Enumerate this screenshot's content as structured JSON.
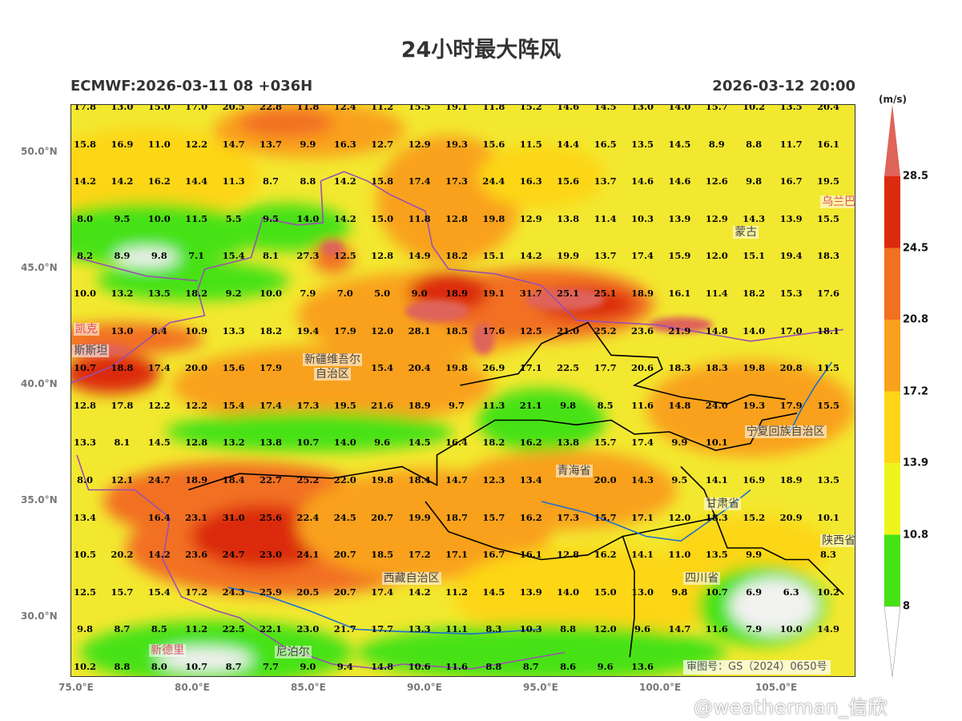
{
  "title": "24小时最大阵风",
  "subtitle_left": "ECMWF:2026-03-11 08 +036H",
  "subtitle_right": "2026-03-12 20:00",
  "colorbar": {
    "unit": "(m/s)",
    "levels": [
      "8",
      "10.8",
      "13.9",
      "17.2",
      "20.8",
      "24.5",
      "28.5"
    ],
    "colors": [
      "#ffffff",
      "#46e214",
      "#eef51c",
      "#fdd617",
      "#f9a11d",
      "#f27021",
      "#dc2a0e",
      "#df645a"
    ]
  },
  "axes": {
    "lon_ticks": [
      {
        "v": 75,
        "label": "75.0°E"
      },
      {
        "v": 80,
        "label": "80.0°E"
      },
      {
        "v": 85,
        "label": "85.0°E"
      },
      {
        "v": 90,
        "label": "90.0°E"
      },
      {
        "v": 95,
        "label": "95.0°E"
      },
      {
        "v": 100,
        "label": "100.0°E"
      },
      {
        "v": 105,
        "label": "105.0°E"
      }
    ],
    "lat_ticks": [
      {
        "v": 50,
        "label": "50.0°N"
      },
      {
        "v": 45,
        "label": "45.0°N"
      },
      {
        "v": 40,
        "label": "40.0°N"
      },
      {
        "v": 35,
        "label": "35.0°N"
      },
      {
        "v": 30,
        "label": "30.0°N"
      }
    ]
  },
  "grid_values": [
    [
      "17.8",
      "13.0",
      "15.0",
      "17.0",
      "20.5",
      "22.8",
      "11.8",
      "12.4",
      "11.2",
      "15.5",
      "19.1",
      "11.8",
      "15.2",
      "14.6",
      "14.5",
      "13.0",
      "14.0",
      "15.7",
      "10.2",
      "13.5",
      "20.4"
    ],
    [
      "15.8",
      "16.9",
      "11.0",
      "12.2",
      "14.7",
      "13.7",
      "9.9",
      "16.3",
      "12.7",
      "12.9",
      "19.3",
      "15.6",
      "11.5",
      "14.4",
      "16.5",
      "13.5",
      "14.5",
      "8.9",
      "8.8",
      "11.7",
      "16.1"
    ],
    [
      "14.2",
      "14.2",
      "16.2",
      "14.4",
      "11.3",
      "8.7",
      "8.8",
      "14.2",
      "15.8",
      "17.4",
      "17.3",
      "24.4",
      "16.3",
      "15.6",
      "13.7",
      "14.6",
      "14.6",
      "12.6",
      "9.8",
      "16.7",
      "19.5"
    ],
    [
      "8.0",
      "9.5",
      "10.0",
      "11.5",
      "5.5",
      "9.5",
      "14.0",
      "14.2",
      "15.0",
      "11.8",
      "12.8",
      "19.8",
      "12.9",
      "13.8",
      "11.4",
      "10.3",
      "13.9",
      "12.9",
      "14.3",
      "13.9",
      "15.5"
    ],
    [
      "8.2",
      "8.9",
      "9.8",
      "7.1",
      "15.4",
      "8.1",
      "27.3",
      "12.5",
      "12.8",
      "14.9",
      "18.2",
      "15.1",
      "14.2",
      "19.9",
      "13.7",
      "17.4",
      "15.9",
      "12.0",
      "15.1",
      "19.4",
      "18.3"
    ],
    [
      "10.0",
      "13.2",
      "13.5",
      "18.2",
      "9.2",
      "10.0",
      "7.9",
      "7.0",
      "5.0",
      "9.0",
      "18.9",
      "19.1",
      "31.7",
      "25.1",
      "25.1",
      "18.9",
      "16.1",
      "11.4",
      "18.2",
      "15.3",
      "17.6"
    ],
    [
      "",
      "13.0",
      "8.4",
      "10.9",
      "13.3",
      "18.2",
      "19.4",
      "17.9",
      "12.0",
      "28.1",
      "18.5",
      "17.6",
      "12.5",
      "21.0",
      "25.2",
      "23.6",
      "21.9",
      "14.8",
      "14.0",
      "17.0",
      "18.1"
    ],
    [
      "10.7",
      "18.8",
      "17.4",
      "20.0",
      "15.6",
      "17.9",
      "",
      "",
      "15.4",
      "20.4",
      "19.8",
      "26.9",
      "17.1",
      "22.5",
      "17.7",
      "20.6",
      "18.3",
      "18.3",
      "19.8",
      "20.8",
      "11.5"
    ],
    [
      "12.8",
      "17.8",
      "12.2",
      "12.2",
      "15.4",
      "17.4",
      "17.3",
      "19.5",
      "21.6",
      "18.9",
      "9.7",
      "11.3",
      "21.1",
      "9.8",
      "8.5",
      "11.6",
      "14.8",
      "24.0",
      "19.3",
      "17.9",
      "15.5"
    ],
    [
      "13.3",
      "8.1",
      "14.5",
      "12.8",
      "13.2",
      "13.8",
      "10.7",
      "14.0",
      "9.6",
      "14.5",
      "16.4",
      "18.2",
      "16.2",
      "13.8",
      "15.7",
      "17.4",
      "9.9",
      "10.1",
      "",
      "",
      ""
    ],
    [
      "8.0",
      "12.1",
      "24.7",
      "18.9",
      "18.4",
      "22.7",
      "25.2",
      "22.0",
      "19.8",
      "18.4",
      "14.7",
      "12.3",
      "13.4",
      "",
      "20.0",
      "14.3",
      "9.5",
      "14.1",
      "16.9",
      "18.9",
      "13.5"
    ],
    [
      "13.4",
      "",
      "16.4",
      "23.1",
      "31.0",
      "25.6",
      "22.4",
      "24.5",
      "20.7",
      "19.9",
      "18.7",
      "15.7",
      "16.2",
      "17.3",
      "15.7",
      "17.1",
      "12.0",
      "18.3",
      "15.2",
      "20.9",
      "10.1"
    ],
    [
      "10.5",
      "20.2",
      "14.2",
      "23.6",
      "24.7",
      "23.0",
      "24.1",
      "20.7",
      "18.5",
      "17.2",
      "17.1",
      "16.7",
      "16.1",
      "12.8",
      "16.2",
      "14.1",
      "11.0",
      "13.5",
      "9.9",
      "",
      "8.3"
    ],
    [
      "12.5",
      "15.7",
      "15.4",
      "17.2",
      "24.3",
      "25.9",
      "20.5",
      "20.7",
      "17.4",
      "14.2",
      "11.2",
      "14.5",
      "13.9",
      "14.0",
      "15.0",
      "13.0",
      "9.8",
      "10.7",
      "6.9",
      "6.3",
      "10.2"
    ],
    [
      "9.8",
      "8.7",
      "8.5",
      "11.2",
      "22.5",
      "22.1",
      "23.0",
      "21.7",
      "17.7",
      "13.3",
      "11.1",
      "8.3",
      "10.3",
      "8.8",
      "12.0",
      "9.6",
      "14.7",
      "11.6",
      "7.9",
      "10.0",
      "14.9"
    ],
    [
      "10.2",
      "8.8",
      "8.0",
      "10.7",
      "8.7",
      "7.7",
      "9.0",
      "9.4",
      "14.8",
      "10.6",
      "11.6",
      "8.8",
      "8.7",
      "8.6",
      "9.6",
      "13.6",
      "",
      "",
      "",
      "",
      ""
    ]
  ],
  "place_labels": [
    {
      "name": "新疆维吾尔",
      "lon": 86.0,
      "lat": 41.1,
      "color": "gray"
    },
    {
      "name": "自治区",
      "lon": 86.0,
      "lat": 40.5,
      "color": "gray"
    },
    {
      "name": "蒙古",
      "lon": 103.8,
      "lat": 46.6,
      "color": "gray"
    },
    {
      "name": "青海省",
      "lon": 96.4,
      "lat": 36.3,
      "color": "gray"
    },
    {
      "name": "甘肃省",
      "lon": 102.8,
      "lat": 34.9,
      "color": "gray"
    },
    {
      "name": "四川省",
      "lon": 101.9,
      "lat": 31.7,
      "color": "gray"
    },
    {
      "name": "西藏自治区",
      "lon": 89.4,
      "lat": 31.7,
      "color": "gray"
    },
    {
      "name": "宁夏回族自治区",
      "lon": 105.5,
      "lat": 38.0,
      "color": "gray"
    },
    {
      "name": "陕西省",
      "lon": 107.8,
      "lat": 33.1,
      "color": "gray"
    },
    {
      "name": "尼泊尔",
      "lon": 84.3,
      "lat": 28.2,
      "color": "gray"
    },
    {
      "name": "斯斯坦",
      "lon": 75.6,
      "lat": 41.5,
      "color": "gray"
    },
    {
      "name": "新德里",
      "lon": 78.9,
      "lat": 28.6,
      "color": "red"
    },
    {
      "name": "乌兰巴",
      "lon": 107.8,
      "lat": 47.9,
      "color": "red"
    },
    {
      "name": "凯克",
      "lon": 75.4,
      "lat": 42.4,
      "color": "red"
    }
  ],
  "footer": {
    "approval": "审图号：GS（2024）0650号",
    "watermark": "@weatherman_信欣"
  }
}
